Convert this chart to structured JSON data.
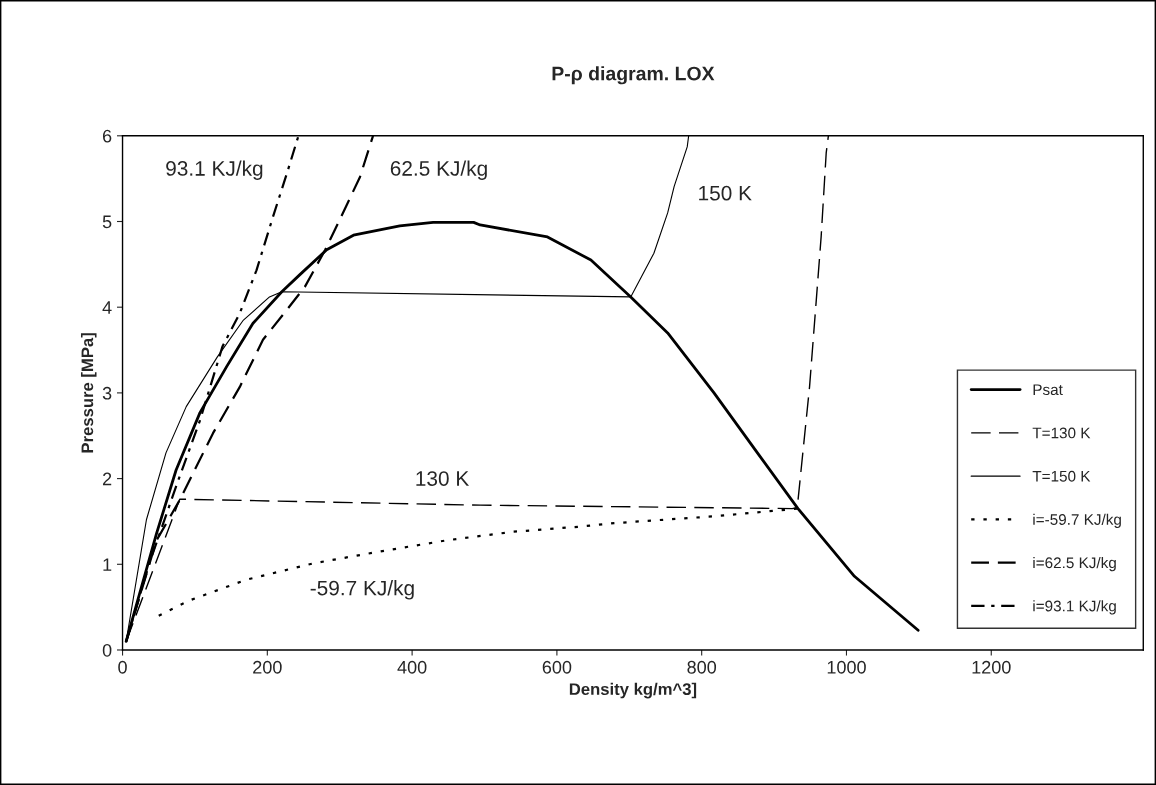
{
  "chart_data": {
    "type": "line",
    "title": "P-ρ diagram. LOX",
    "xlabel": "Density kg/m^3]",
    "ylabel": "Pressure [MPa]",
    "xlim": [
      0,
      1410
    ],
    "ylim": [
      0,
      6
    ],
    "xticks": [
      0,
      200,
      400,
      600,
      800,
      1000,
      1200
    ],
    "yticks": [
      0,
      1,
      2,
      3,
      4,
      5,
      6
    ],
    "grid": false,
    "legend": "right",
    "marker": "none",
    "series": [
      {
        "name": "Psat",
        "color": "#000000",
        "line_style": "solid",
        "x": [
          5,
          47,
          74,
          107,
          144,
          180,
          220,
          245,
          282,
          319,
          383,
          429,
          485,
          494,
          587,
          647,
          702,
          753,
          817,
          877,
          933,
          1011,
          1099
        ],
        "values": [
          0.1,
          1.36,
          2.1,
          2.77,
          3.31,
          3.81,
          4.18,
          4.38,
          4.67,
          4.84,
          4.95,
          4.99,
          4.99,
          4.96,
          4.82,
          4.55,
          4.12,
          3.7,
          3.0,
          2.3,
          1.65,
          0.86,
          0.23
        ]
      },
      {
        "name": "T=130 K",
        "color": "#000000",
        "line_style": "dashed",
        "x": [
          5,
          79,
          494,
          925,
          932,
          949,
          958,
          965,
          972,
          975
        ],
        "values": [
          0.1,
          1.76,
          1.69,
          1.65,
          1.66,
          3.07,
          4.05,
          4.82,
          5.8,
          6.0
        ]
      },
      {
        "name": "T=150 K",
        "color": "#000000",
        "line_style": "solid",
        "x": [
          5,
          33,
          60,
          88,
          131,
          167,
          203,
          220,
          702,
          734,
          753,
          762,
          780,
          782
        ],
        "values": [
          0.1,
          1.52,
          2.3,
          2.84,
          3.42,
          3.85,
          4.12,
          4.18,
          4.12,
          4.63,
          5.1,
          5.41,
          5.87,
          6.0
        ]
      },
      {
        "name": "i=-59.7 KJ/kg",
        "color": "#000000",
        "line_style": "dotted",
        "x": [
          50,
          93,
          171,
          263,
          356,
          448,
          540,
          633,
          679,
          817,
          933
        ],
        "values": [
          0.4,
          0.58,
          0.82,
          1.01,
          1.15,
          1.28,
          1.38,
          1.44,
          1.48,
          1.56,
          1.65
        ]
      },
      {
        "name": "i=62.5 KJ/kg",
        "color": "#000000",
        "line_style": "dashed",
        "x": [
          5,
          47,
          79,
          125,
          162,
          194,
          227,
          252,
          280,
          300,
          328,
          346
        ],
        "values": [
          0.1,
          1.28,
          1.75,
          2.53,
          3.07,
          3.62,
          3.97,
          4.24,
          4.67,
          5.02,
          5.52,
          6.0
        ]
      },
      {
        "name": "i=93.1 KJ/kg",
        "color": "#000000",
        "line_style": "dashdot",
        "x": [
          5,
          37,
          74,
          107,
          138,
          162,
          185,
          208,
          227,
          243
        ],
        "values": [
          0.1,
          1.01,
          1.91,
          2.68,
          3.54,
          3.93,
          4.43,
          5.06,
          5.56,
          6.0
        ]
      }
    ],
    "annotations": [
      "93.1 KJ/kg",
      "62.5 KJ/kg",
      "150 K",
      "130 K",
      "-59.7 KJ/kg"
    ]
  }
}
